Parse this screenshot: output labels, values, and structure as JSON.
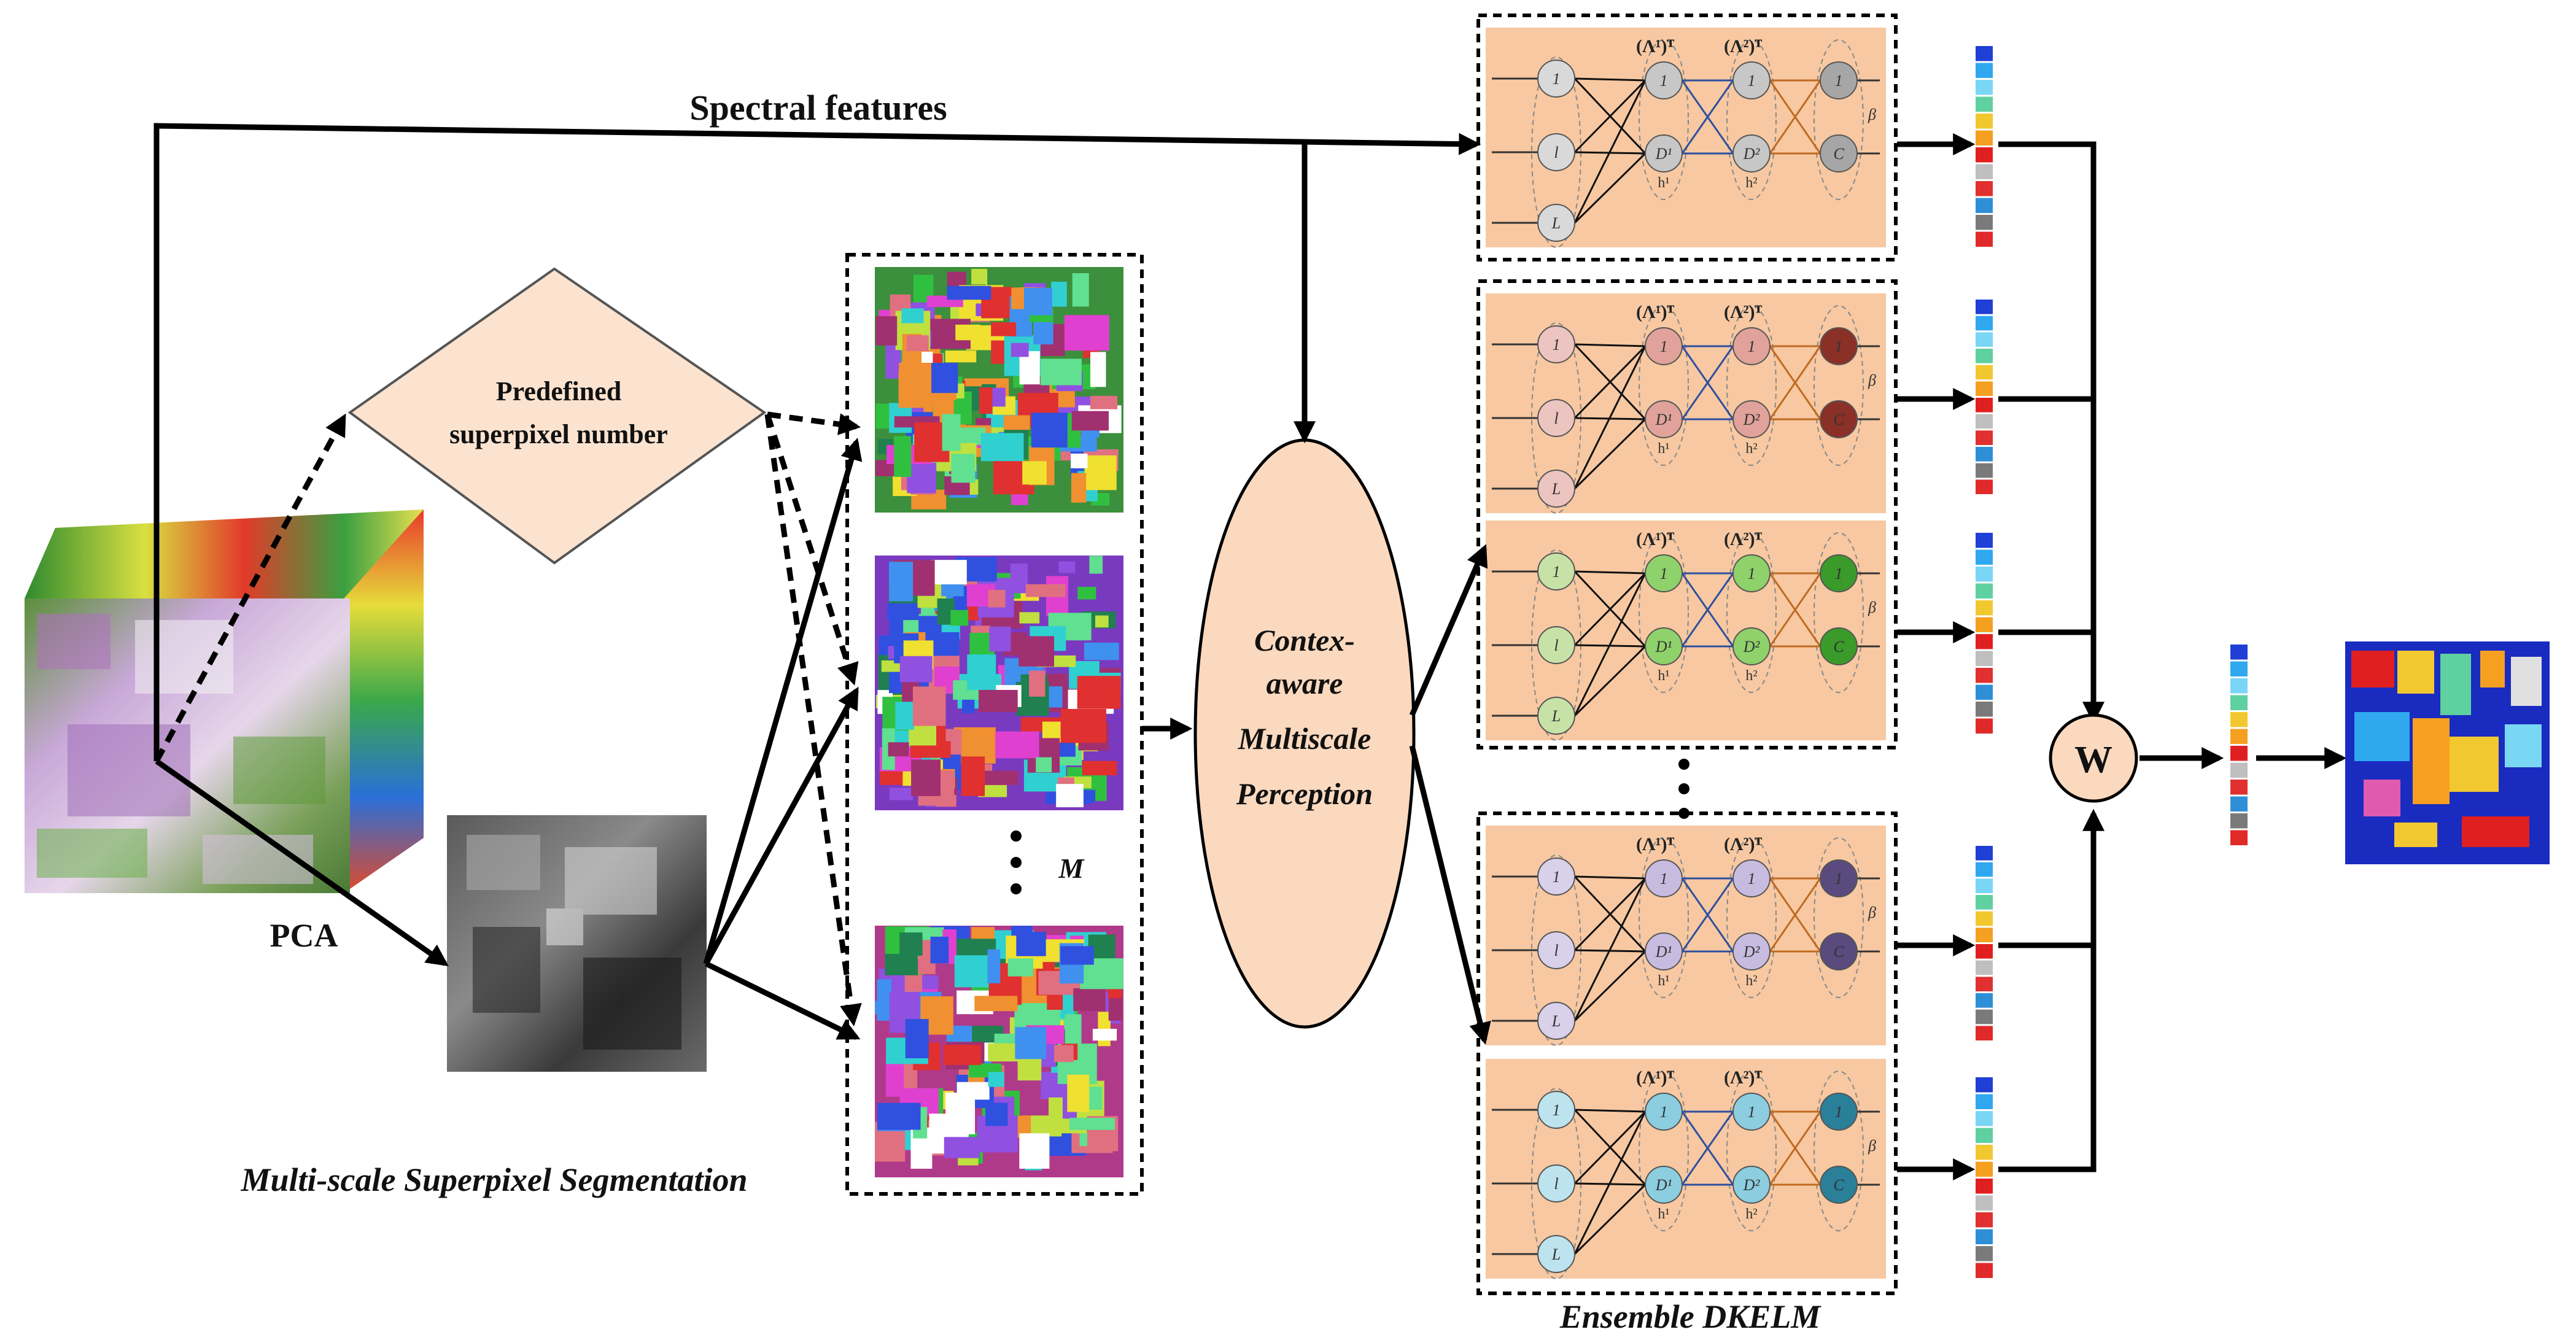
{
  "labels": {
    "spectral_features": "Spectral features",
    "predefined_line1": "Predefined",
    "predefined_line2": "superpixel number",
    "pca": "PCA",
    "multiscale_segmentation": "Multi-scale Superpixel Segmentation",
    "m_symbol": "M",
    "perception_line1": "Contex-",
    "perception_line2": "aware",
    "perception_line3": "Multiscale",
    "perception_line4": "Perception",
    "ensemble": "Ensemble DKELM",
    "weight": "W"
  },
  "network": {
    "input_nodes": [
      "1",
      "l",
      "L"
    ],
    "hidden1_nodes": [
      "1",
      "D¹"
    ],
    "hidden2_nodes": [
      "1",
      "D²"
    ],
    "output_nodes": [
      "1",
      "C"
    ],
    "weight1": "(Λ¹)ᵀ",
    "weight2": "(Λ²)ᵀ",
    "h1": "h¹",
    "h2": "h²",
    "beta": "β"
  },
  "colors": {
    "panel_bg": "#f7c8a1",
    "perception_fill": "#fad9bf",
    "diamond_fill": "#fbe3d0",
    "arrow": "#000000",
    "hidden_link": "#2e4fa0",
    "output_link": "#c06a20",
    "label_color": "#1e5fa8",
    "map_background": "#1a2bc0"
  },
  "learners": [
    {
      "input_color": "#d9d9d9",
      "hidden_color": "#c7c7c7",
      "output_color": "#a6a6a6"
    },
    {
      "input_color": "#ecc4c0",
      "hidden_color": "#e0a29a",
      "output_color": "#8a3027"
    },
    {
      "input_color": "#c7e2a6",
      "hidden_color": "#8fd16a",
      "output_color": "#3a9a2a"
    },
    {
      "input_color": "#d9d0ea",
      "hidden_color": "#c7bce0",
      "output_color": "#5a4a7e"
    },
    {
      "input_color": "#bde3ee",
      "hidden_color": "#8ccde0",
      "output_color": "#2a7f99"
    }
  ],
  "probability_bar_colors": [
    "#1f3fd6",
    "#2fa8f0",
    "#7ad6f5",
    "#5fd0a0",
    "#f2c830",
    "#f5a020",
    "#e02020",
    "#bfbfbf",
    "#e03030",
    "#2f8fd6",
    "#7a7a7a",
    "#e02a2a"
  ]
}
